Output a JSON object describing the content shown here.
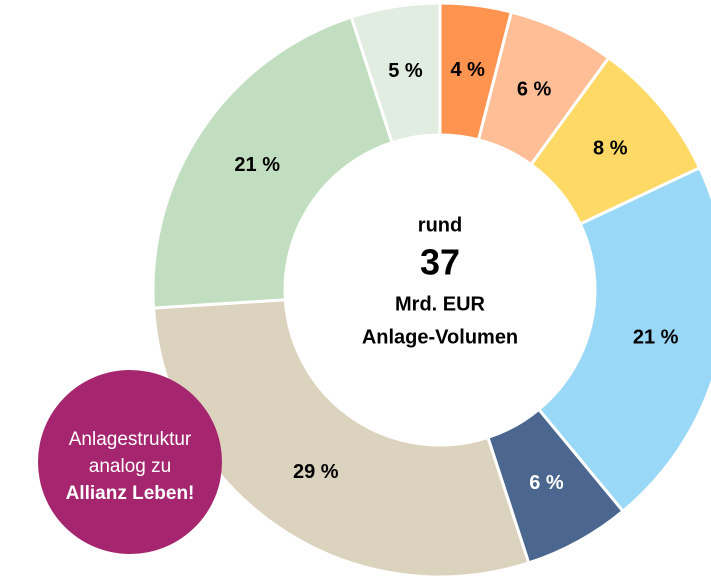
{
  "chart_data": {
    "type": "donut",
    "values": [
      4,
      6,
      8,
      21,
      6,
      29,
      21,
      5
    ],
    "value_labels": [
      "4 %",
      "6 %",
      "8 %",
      "21 %",
      "6 %",
      "29 %",
      "21 %",
      "5 %"
    ],
    "colors": [
      "#FF9350",
      "#FFBE96",
      "#FFD965",
      "#9AD8F7",
      "#4B668F",
      "#DCD3BE",
      "#C2DEC0",
      "#E1EDE0"
    ],
    "center_text": [
      "rund",
      "37",
      "Mrd. EUR",
      "Anlage-Volumen"
    ],
    "callout": [
      "Anlagestruktur",
      "analog zu",
      "Allianz Leben!"
    ]
  }
}
